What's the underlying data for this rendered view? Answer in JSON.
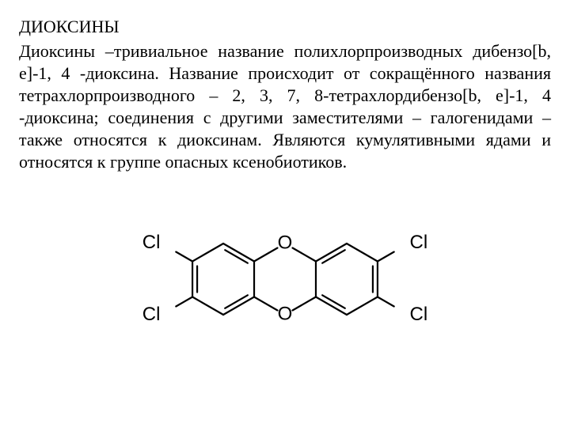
{
  "title": "ДИОКСИНЫ",
  "paragraph": "Диоксины –тривиальное название полихлорпроизводных дибензо[b, e]-1, 4 -диоксина. Название происходит от сокращённого названия тетрахлорпроизводного – 2, 3, 7, 8-тетрахлордибензо[b, e]-1, 4 -диоксина; соединения с другими заместителями – галогенидами – также относятся к диоксинам. Являются кумулятивными ядами и относятся к группе опасных ксенобиотиков.",
  "molecule": {
    "name": "2,3,7,8-tetrachlorodibenzo-p-dioxin",
    "stroke_color": "#000000",
    "stroke_width": 2.2,
    "label_font_size": 24,
    "atoms": {
      "O_top": "O",
      "O_bottom": "O",
      "Cl_tl": "Cl",
      "Cl_bl": "Cl",
      "Cl_tr": "Cl",
      "Cl_br": "Cl"
    }
  }
}
